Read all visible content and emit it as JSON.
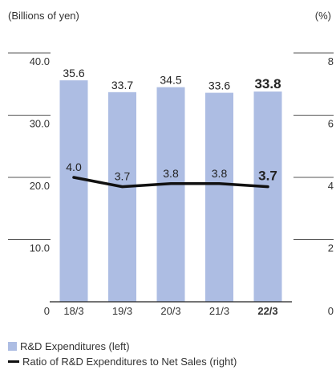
{
  "chart_data": {
    "type": "bar",
    "categories": [
      "18/3",
      "19/3",
      "20/3",
      "21/3",
      "22/3"
    ],
    "highlight_category": "22/3",
    "series": [
      {
        "name": "R&D Expenditures (left)",
        "kind": "bar",
        "axis": "left",
        "values": [
          35.6,
          33.7,
          34.5,
          33.6,
          33.8
        ],
        "labels": [
          "35.6",
          "33.7",
          "34.5",
          "33.6",
          "33.8"
        ],
        "color": "#adbde3"
      },
      {
        "name": "Ratio of R&D Expenditures to Net Sales (right)",
        "kind": "line",
        "axis": "right",
        "values": [
          4.0,
          3.7,
          3.8,
          3.8,
          3.7
        ],
        "labels": [
          "4.0",
          "3.7",
          "3.8",
          "3.8",
          "3.7"
        ],
        "color": "#111111"
      }
    ],
    "y_left": {
      "unit_label": "(Billions of yen)",
      "ylim": [
        0,
        40
      ],
      "ticks": [
        0,
        10,
        20,
        30,
        40
      ],
      "tick_labels": [
        "0",
        "10.0",
        "20.0",
        "30.0",
        "40.0"
      ]
    },
    "y_right": {
      "unit_label": "(%)",
      "ylim": [
        0,
        8
      ],
      "ticks": [
        0,
        2,
        4,
        6,
        8
      ],
      "tick_labels": [
        "0",
        "2",
        "4",
        "6",
        "8"
      ]
    },
    "legend_position": "bottom-left"
  }
}
